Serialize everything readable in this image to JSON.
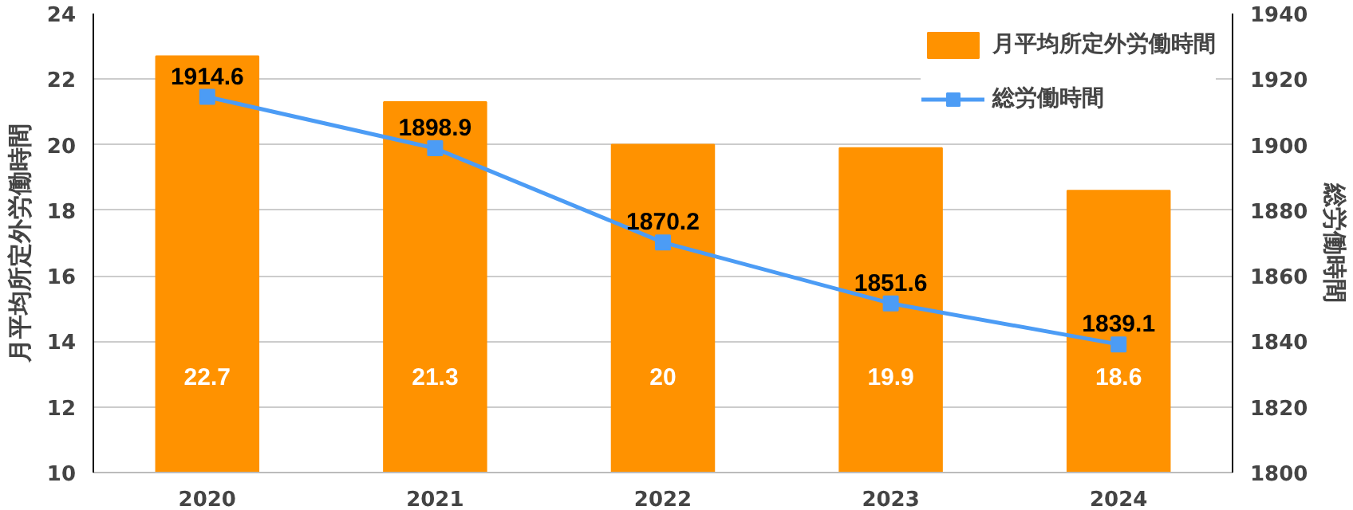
{
  "chart_data": {
    "type": "bar",
    "categories": [
      "2020",
      "2021",
      "2022",
      "2023",
      "2024"
    ],
    "ylabel": "月平均所定外労働時間",
    "y2label": "総労働時間",
    "series": [
      {
        "name": "月平均所定外労働時間",
        "color": "#ff9200",
        "values": [
          22.7,
          21.3,
          20,
          19.9,
          18.6
        ],
        "value_labels": [
          "22.7",
          "21.3",
          "20",
          "19.9",
          "18.6"
        ]
      },
      {
        "name": "総労働時間",
        "type": "line",
        "axis": "y2",
        "color": "#4c9cf5",
        "marker": "square",
        "values": [
          1914.6,
          1898.9,
          1870.2,
          1851.6,
          1839.1
        ],
        "value_labels": [
          "1914.6",
          "1898.9",
          "1870.2",
          "1851.6",
          "1839.1"
        ]
      }
    ],
    "ylim": [
      10,
      24
    ],
    "yticks": [
      10,
      12,
      14,
      16,
      18,
      20,
      22,
      24
    ],
    "y2lim": [
      1800,
      1940
    ],
    "y2ticks": [
      1800,
      1820,
      1840,
      1860,
      1880,
      1900,
      1920,
      1940
    ],
    "grid": "y",
    "legend": "top right"
  }
}
